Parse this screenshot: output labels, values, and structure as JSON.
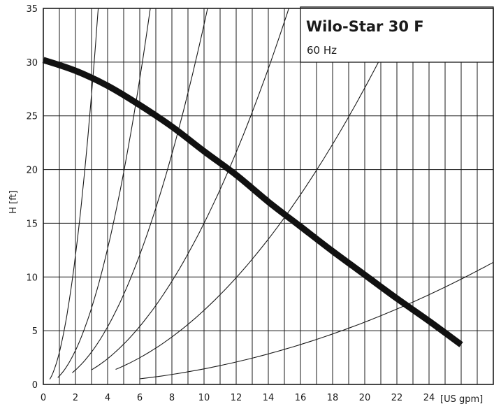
{
  "chart_data": {
    "type": "line",
    "title": "Wilo-Star 30 F",
    "subtitle": "60 Hz",
    "xlabel": "[US gpm]",
    "ylabel": "H [ft]",
    "xlim": [
      0,
      28
    ],
    "ylim": [
      0,
      35
    ],
    "x_ticks": [
      "0",
      "2",
      "4",
      "6",
      "8",
      "10",
      "12",
      "14",
      "16",
      "18",
      "20",
      "22",
      "24"
    ],
    "y_ticks": [
      "0",
      "5",
      "10",
      "15",
      "20",
      "25",
      "30",
      "35"
    ],
    "grid": true,
    "legend_position": "top-right",
    "series": [
      {
        "kind": "pump-curve",
        "x": [
          0,
          2,
          4,
          6,
          8,
          10,
          12,
          14,
          16,
          18,
          20,
          22,
          24,
          26
        ],
        "y": [
          30.2,
          29.2,
          27.8,
          26.0,
          24.0,
          21.7,
          19.5,
          17.0,
          14.7,
          12.4,
          10.2,
          8.0,
          5.9,
          3.7
        ]
      },
      {
        "kind": "system-curve",
        "k": 3.0,
        "x_range": [
          0.4,
          3.5
        ]
      },
      {
        "kind": "system-curve",
        "k": 0.79,
        "x_range": [
          0.9,
          7.9
        ]
      },
      {
        "kind": "system-curve",
        "k": 0.335,
        "x_range": [
          1.8,
          12.5
        ]
      },
      {
        "kind": "system-curve",
        "k": 0.15,
        "x_range": [
          3.0,
          18.7
        ]
      },
      {
        "kind": "system-curve",
        "k": 0.069,
        "x_range": [
          4.5,
          28
        ]
      },
      {
        "kind": "system-curve",
        "k": 0.0145,
        "x_range": [
          6.0,
          28
        ]
      }
    ]
  }
}
